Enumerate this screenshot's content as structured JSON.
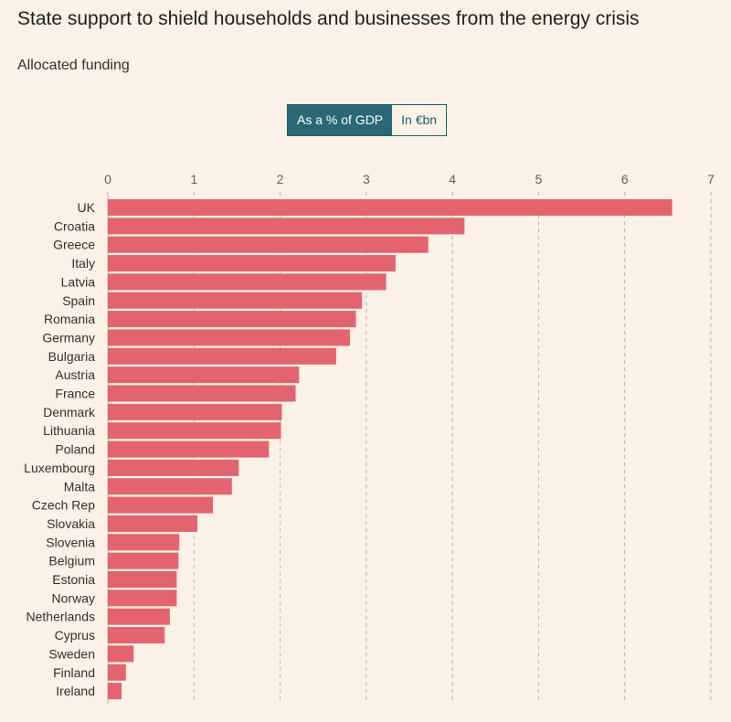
{
  "header": {
    "title": "State support to shield households and businesses from the energy crisis",
    "subtitle": "Allocated funding"
  },
  "toggle": {
    "option_gdp": "As a % of GDP",
    "option_eur": "In €bn",
    "selected": "As a % of GDP"
  },
  "colors": {
    "bar": "#e3636f",
    "toggle_active": "#2a6875",
    "background": "#fbf1e6"
  },
  "chart_data": {
    "type": "bar",
    "orientation": "horizontal",
    "title": "State support to shield households and businesses from the energy crisis",
    "subtitle": "Allocated funding",
    "xlabel": "",
    "ylabel": "",
    "xlim": [
      0,
      7
    ],
    "xticks": [
      0,
      1,
      2,
      3,
      4,
      5,
      6,
      7
    ],
    "grid": true,
    "categories": [
      "UK",
      "Croatia",
      "Greece",
      "Italy",
      "Latvia",
      "Spain",
      "Romania",
      "Germany",
      "Bulgaria",
      "Austria",
      "France",
      "Denmark",
      "Lithuania",
      "Poland",
      "Luxembourg",
      "Malta",
      "Czech Rep",
      "Slovakia",
      "Slovenia",
      "Belgium",
      "Estonia",
      "Norway",
      "Netherlands",
      "Cyprus",
      "Sweden",
      "Finland",
      "Ireland"
    ],
    "values": [
      6.55,
      4.14,
      3.72,
      3.34,
      3.23,
      2.95,
      2.88,
      2.81,
      2.65,
      2.22,
      2.18,
      2.02,
      2.01,
      1.87,
      1.52,
      1.44,
      1.22,
      1.04,
      0.83,
      0.82,
      0.8,
      0.8,
      0.72,
      0.66,
      0.3,
      0.21,
      0.16
    ],
    "series": [
      {
        "name": "As a % of GDP",
        "values": [
          6.55,
          4.14,
          3.72,
          3.34,
          3.23,
          2.95,
          2.88,
          2.81,
          2.65,
          2.22,
          2.18,
          2.02,
          2.01,
          1.87,
          1.52,
          1.44,
          1.22,
          1.04,
          0.83,
          0.82,
          0.8,
          0.8,
          0.72,
          0.66,
          0.3,
          0.21,
          0.16
        ]
      }
    ]
  }
}
